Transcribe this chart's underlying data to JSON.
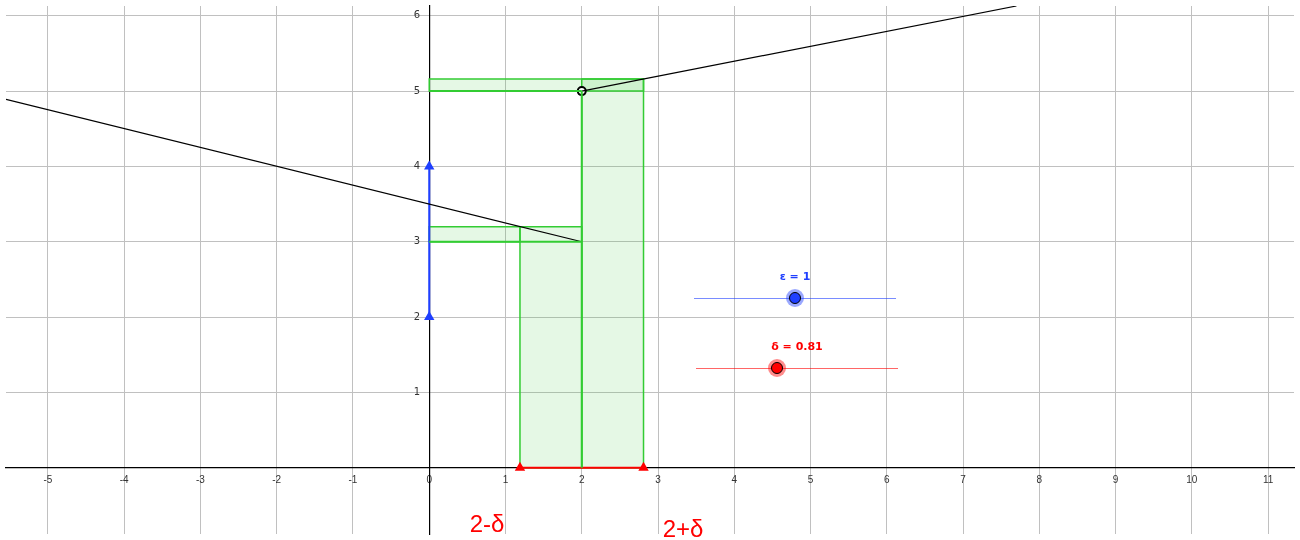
{
  "chart_data": {
    "type": "line",
    "xlim": [
      -5.55,
      11.34
    ],
    "ylim": [
      -0.88,
      6.13
    ],
    "xticks": [
      -5,
      -4,
      -3,
      -2,
      -1,
      0,
      1,
      2,
      3,
      4,
      5,
      6,
      7,
      8,
      9,
      10,
      11
    ],
    "yticks": [
      1,
      2,
      3,
      4,
      5,
      6
    ],
    "grid": true,
    "legend": false,
    "line_style": "solid",
    "series": [
      {
        "type": "area",
        "color": "#33cc33",
        "x": [
          1.19,
          1.19,
          2,
          2
        ],
        "values": [
          0,
          3.2,
          3.2,
          0
        ]
      },
      {
        "type": "area",
        "color": "#33cc33",
        "x": [
          2,
          2,
          2.81,
          2.81
        ],
        "values": [
          0,
          5.16,
          5.16,
          0
        ]
      },
      {
        "type": "area",
        "color": "#33cc33",
        "x": [
          0,
          0,
          1.19,
          1.19
        ],
        "values": [
          3,
          3.2,
          3.2,
          3
        ]
      },
      {
        "type": "area",
        "color": "#33cc33",
        "x": [
          0,
          0,
          2.81,
          2.81
        ],
        "values": [
          5,
          5.16,
          5.16,
          5
        ]
      },
      {
        "type": "line",
        "color": "#33cc33",
        "x": [
          0,
          2
        ],
        "values": [
          3,
          3
        ]
      },
      {
        "type": "line",
        "color": "#33cc33",
        "x": [
          0,
          2
        ],
        "values": [
          5,
          5
        ]
      },
      {
        "type": "line",
        "color": "#33cc33",
        "x": [
          2,
          2
        ],
        "values": [
          0,
          5
        ]
      },
      {
        "type": "line",
        "color": "#000000",
        "x": [
          -5.55,
          2
        ],
        "values": [
          4.89,
          3
        ]
      },
      {
        "type": "line",
        "color": "#000000",
        "x": [
          2,
          7.7
        ],
        "values": [
          5,
          6.13
        ]
      },
      {
        "type": "scatter",
        "color": "#000000",
        "marker": "circle",
        "x": [
          2
        ],
        "values": [
          5
        ]
      },
      {
        "type": "line",
        "color": "#1f3fff",
        "marker": "triangle",
        "x": [
          0,
          0
        ],
        "values": [
          2,
          4
        ]
      },
      {
        "type": "line",
        "color": "#ff0000",
        "marker": "triangle",
        "x": [
          1.19,
          2.81
        ],
        "values": [
          0,
          0
        ]
      }
    ],
    "annotations": [
      "ε = 1",
      "δ = 0.81",
      "2-δ",
      "2+δ"
    ]
  }
}
